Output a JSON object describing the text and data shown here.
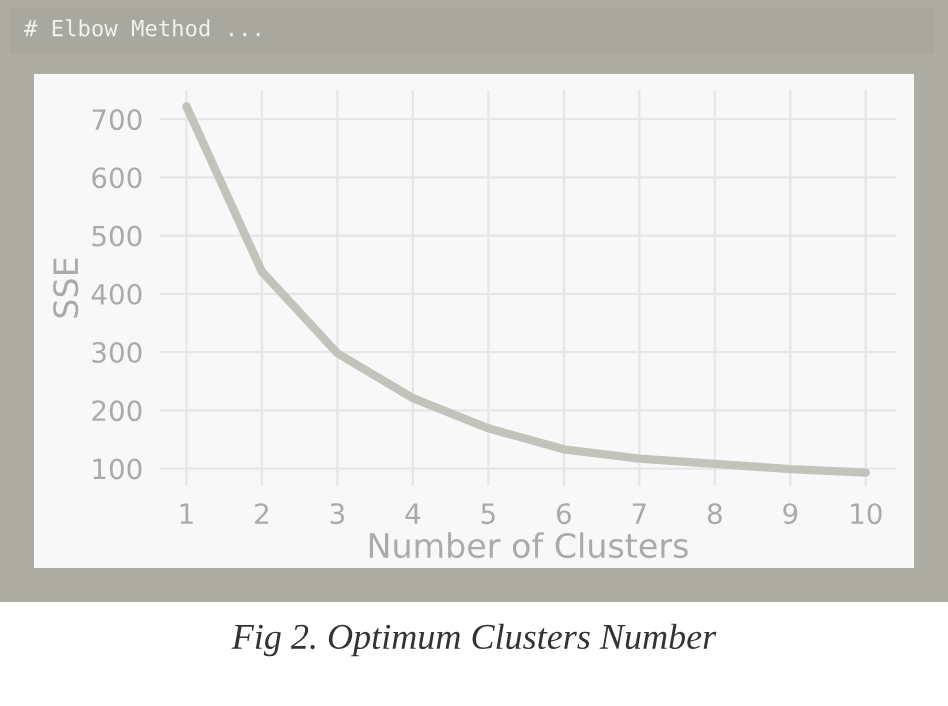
{
  "chart_data": {
    "type": "line",
    "title": "# Elbow Method ...",
    "xlabel": "Number of Clusters",
    "ylabel": "SSE",
    "x": [
      1,
      2,
      3,
      4,
      5,
      6,
      7,
      8,
      9,
      10
    ],
    "series": [
      {
        "color": "#c4c3bb",
        "values": [
          722,
          438,
          298,
          221,
          169,
          133,
          117,
          108,
          99,
          93
        ]
      }
    ],
    "xlim": [
      0.65,
      10.4
    ],
    "xticks": [
      1,
      2,
      3,
      4,
      5,
      6,
      7,
      8,
      9,
      10
    ],
    "ylim": [
      70,
      750
    ],
    "yticks": [
      100,
      200,
      300,
      400,
      500,
      600,
      700
    ],
    "grid": true,
    "marker": "none",
    "line_style": "solid",
    "legend": false,
    "annotations": [
      "Fig 2. Optimum Clusters Number"
    ]
  }
}
